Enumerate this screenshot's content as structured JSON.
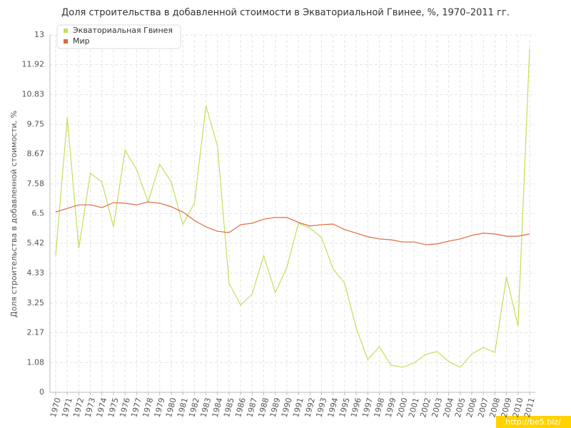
{
  "chart_data": {
    "type": "line",
    "title": "Доля строительства в добавленной стоимости в Экваториальной Гвинее, %, 1970–2011 гг.",
    "y_label": "Доля строительства в добавленной стоимости, %",
    "watermark": "http://be5.biz/",
    "categories": [
      "1970",
      "1971",
      "1972",
      "1973",
      "1974",
      "1975",
      "1976",
      "1977",
      "1978",
      "1979",
      "1980",
      "1981",
      "1982",
      "1983",
      "1984",
      "1985",
      "1986",
      "1987",
      "1988",
      "1989",
      "1990",
      "1991",
      "1992",
      "1993",
      "1994",
      "1995",
      "1996",
      "1997",
      "1998",
      "1999",
      "2000",
      "2001",
      "2002",
      "2003",
      "2004",
      "2005",
      "2006",
      "2007",
      "2008",
      "2009",
      "2010",
      "2011"
    ],
    "series": [
      {
        "name": "Экваториальная Гвинея",
        "color": "#c3df5a",
        "values": [
          4.98,
          9.99,
          5.24,
          7.97,
          7.65,
          6.02,
          8.82,
          8.1,
          6.93,
          8.3,
          7.65,
          6.1,
          6.88,
          10.43,
          8.95,
          3.97,
          3.17,
          3.58,
          4.98,
          3.63,
          4.54,
          6.15,
          5.97,
          5.63,
          4.49,
          3.97,
          2.34,
          1.19,
          1.66,
          0.99,
          0.91,
          1.06,
          1.38,
          1.48,
          1.12,
          0.91,
          1.4,
          1.63,
          1.45,
          4.2,
          2.41,
          12.5
        ]
      },
      {
        "name": "Мир",
        "color": "#e0683f",
        "values": [
          6.56,
          6.69,
          6.82,
          6.82,
          6.72,
          6.9,
          6.88,
          6.82,
          6.93,
          6.88,
          6.75,
          6.56,
          6.25,
          6.02,
          5.86,
          5.81,
          6.1,
          6.15,
          6.3,
          6.36,
          6.36,
          6.18,
          6.05,
          6.1,
          6.12,
          5.92,
          5.79,
          5.66,
          5.58,
          5.55,
          5.47,
          5.47,
          5.37,
          5.4,
          5.5,
          5.58,
          5.71,
          5.79,
          5.76,
          5.68,
          5.68,
          5.76
        ]
      }
    ],
    "ylim": [
      0,
      13
    ],
    "yticks": [
      0,
      1.08,
      2.17,
      3.25,
      4.33,
      5.42,
      6.5,
      7.58,
      8.67,
      9.75,
      10.83,
      11.92,
      13
    ],
    "grid": true
  }
}
